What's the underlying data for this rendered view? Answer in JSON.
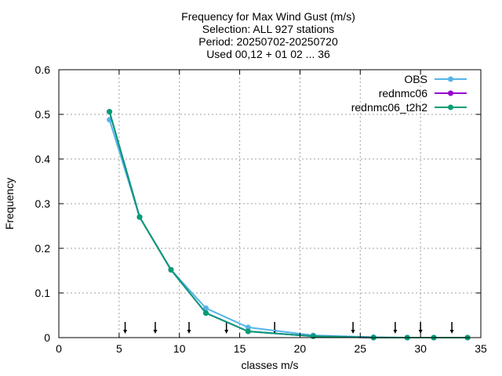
{
  "chart_data": {
    "type": "line",
    "title_lines": [
      "Frequency  for Max Wind Gust (m/s)",
      "Selection: ALL    927 stations",
      "Period: 20250702-20250720",
      "Used 00,12 + 01 02 ... 36"
    ],
    "xlabel": "classes m/s",
    "ylabel": "Frequency",
    "xlim": [
      0,
      35
    ],
    "ylim": [
      0,
      0.6
    ],
    "xticks": [
      0,
      5,
      10,
      15,
      20,
      25,
      30,
      35
    ],
    "yticks": [
      0,
      0.1,
      0.2,
      0.3,
      0.4,
      0.5,
      0.6
    ],
    "xtick_labels": [
      "0",
      "5",
      "10",
      "15",
      "20",
      "25",
      "30",
      "35"
    ],
    "ytick_labels": [
      "0",
      "0.1",
      "0.2",
      "0.3",
      "0.4",
      "0.5",
      "0.6"
    ],
    "grid": true,
    "legend_position": "top-right",
    "x": [
      4.2,
      6.7,
      9.3,
      12.2,
      15.7,
      21.1,
      26.1,
      28.9,
      31.1,
      33.9
    ],
    "series": [
      {
        "name": "OBS",
        "color": "#56b4e9",
        "values": [
          0.488,
          0.27,
          0.152,
          0.066,
          0.023,
          0.005,
          0.001,
          0.0,
          0.0,
          0.0
        ]
      },
      {
        "name": "rednmc06",
        "color": "#9400d3",
        "values": [
          0.506,
          0.27,
          0.152,
          0.055,
          0.014,
          0.003,
          0.0,
          0.0,
          0.0,
          0.0
        ]
      },
      {
        "name": "rednmc06_t2h2",
        "color": "#009e73",
        "values": [
          0.506,
          0.27,
          0.152,
          0.055,
          0.014,
          0.003,
          0.0,
          0.0,
          0.0,
          0.0
        ]
      }
    ],
    "class_boundaries": [
      5.5,
      8.0,
      10.8,
      13.9,
      17.9,
      24.4,
      27.9,
      30.0,
      32.6
    ]
  }
}
